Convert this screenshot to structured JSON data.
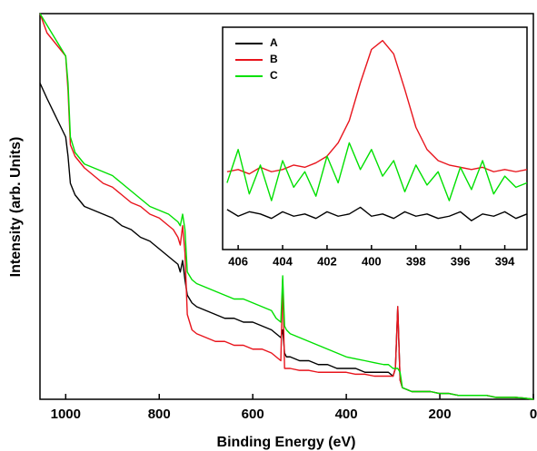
{
  "chart_data": [
    {
      "type": "line",
      "xlabel": "Binding Energy (eV)",
      "ylabel": "Intensity (arb. Units)",
      "xlim": [
        1055,
        0
      ],
      "xticks": [
        1000,
        800,
        600,
        400,
        200,
        0
      ],
      "ylim": [
        0,
        100
      ],
      "x": [
        1055,
        1040,
        1020,
        1000,
        995,
        990,
        980,
        960,
        940,
        920,
        900,
        880,
        860,
        840,
        820,
        800,
        780,
        770,
        760,
        755,
        750,
        745,
        740,
        730,
        720,
        700,
        680,
        660,
        640,
        620,
        600,
        580,
        560,
        550,
        540,
        536,
        532,
        528,
        520,
        500,
        480,
        460,
        440,
        420,
        400,
        380,
        360,
        340,
        320,
        310,
        300,
        295,
        290,
        285,
        280,
        270,
        260,
        240,
        220,
        200,
        180,
        160,
        140,
        120,
        100,
        80,
        60,
        40,
        20,
        0
      ],
      "series": [
        {
          "color": "#000000",
          "values": [
            82,
            78,
            73,
            68,
            63,
            56,
            53,
            50,
            49,
            48,
            47,
            45,
            44,
            42,
            41,
            39,
            37,
            36,
            35,
            33,
            36,
            31,
            27,
            25,
            24,
            23,
            22,
            21,
            21,
            20,
            20,
            19,
            18,
            17,
            16,
            18,
            12,
            11,
            11,
            10,
            10,
            9,
            9,
            8,
            8,
            8,
            7,
            7,
            7,
            7,
            6,
            8,
            24,
            5,
            3,
            2.5,
            2,
            2,
            2,
            1.5,
            1.5,
            1,
            1,
            1,
            1,
            0.5,
            0.5,
            0.5,
            0.3,
            0
          ]
        },
        {
          "color": "#e8141c",
          "values": [
            100,
            95,
            92,
            89,
            80,
            66,
            63,
            60,
            58,
            56,
            55,
            53,
            51,
            50,
            48,
            47,
            45,
            44,
            42,
            40,
            45,
            38,
            22,
            18,
            17,
            16,
            15,
            15,
            14,
            14,
            13,
            13,
            12,
            11,
            10,
            31,
            8,
            8,
            8,
            7.5,
            7.5,
            7,
            7,
            7,
            7,
            6.5,
            6.5,
            6,
            6,
            6,
            6,
            8,
            24,
            5,
            3,
            2.5,
            2,
            2,
            2,
            1.5,
            1.5,
            1,
            1,
            1,
            1,
            0.5,
            0.5,
            0.5,
            0.3,
            0
          ]
        },
        {
          "color": "#00e000",
          "values": [
            100,
            97,
            93,
            89,
            82,
            68,
            64,
            61,
            60,
            59,
            58,
            56,
            54,
            52,
            50,
            49,
            48,
            47,
            46,
            45,
            48,
            44,
            33,
            31,
            30,
            29,
            28,
            27,
            26,
            26,
            25,
            24,
            23,
            21,
            20,
            32,
            19,
            18,
            17,
            16,
            15,
            14,
            13,
            12,
            11,
            10.5,
            10,
            9.5,
            9,
            9,
            8,
            8,
            8,
            7,
            3,
            2.5,
            2,
            2,
            2,
            1.5,
            1.5,
            1,
            1,
            1,
            1,
            0.5,
            0.5,
            0.5,
            0.3,
            0
          ]
        }
      ]
    },
    {
      "type": "line",
      "legend": "upper left",
      "xlim": [
        406.7,
        393
      ],
      "xticks": [
        406,
        404,
        402,
        400,
        398,
        396,
        394
      ],
      "ylim": [
        0,
        100
      ],
      "x": [
        406.5,
        406,
        405.5,
        405,
        404.5,
        404,
        403.5,
        403,
        402.5,
        402,
        401.5,
        401,
        400.5,
        400,
        399.5,
        399,
        398.5,
        398,
        397.5,
        397,
        396.5,
        396,
        395.5,
        395,
        394.5,
        394,
        393.5,
        393
      ],
      "series": [
        {
          "name": "A",
          "color": "#000000",
          "values": [
            18,
            15,
            17,
            16,
            14,
            17,
            15,
            16,
            14,
            17,
            15,
            16,
            19,
            15,
            16,
            14,
            17,
            15,
            16,
            14,
            15,
            17,
            13,
            16,
            15,
            17,
            14,
            16
          ]
        },
        {
          "name": "B",
          "color": "#e8141c",
          "values": [
            35,
            36,
            34,
            37,
            35,
            36,
            38,
            37,
            39,
            42,
            48,
            58,
            75,
            90,
            94,
            88,
            72,
            55,
            45,
            40,
            38,
            37,
            36,
            37,
            35,
            36,
            35,
            36
          ]
        },
        {
          "name": "C",
          "color": "#00e000",
          "values": [
            30,
            45,
            25,
            38,
            22,
            40,
            28,
            35,
            24,
            42,
            30,
            48,
            36,
            45,
            33,
            40,
            26,
            38,
            29,
            35,
            22,
            37,
            27,
            40,
            25,
            33,
            28,
            30
          ]
        }
      ]
    }
  ]
}
